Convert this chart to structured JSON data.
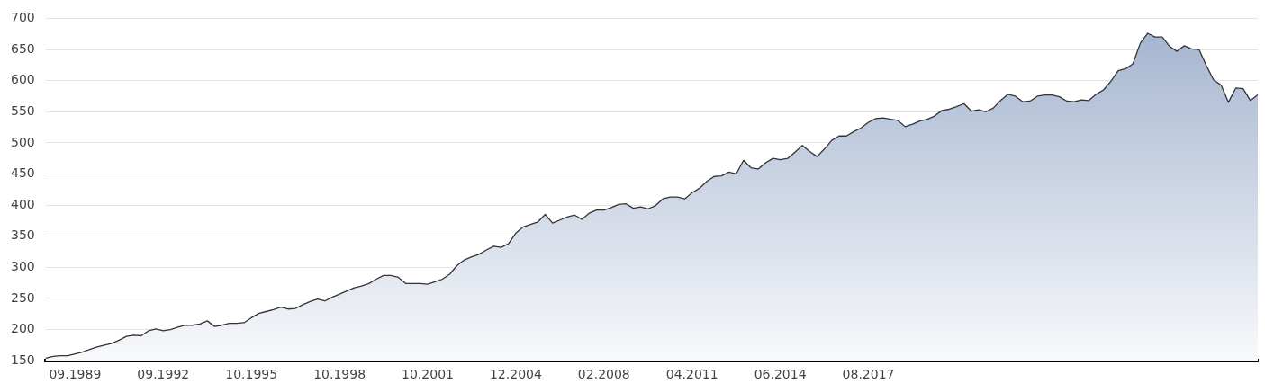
{
  "chart_data": {
    "type": "area",
    "categories": [
      null,
      null,
      null,
      null,
      "09.1989",
      null,
      null,
      null,
      null,
      null,
      null,
      null,
      null,
      null,
      null,
      null,
      "09.1992",
      null,
      null,
      null,
      null,
      null,
      null,
      null,
      null,
      null,
      null,
      null,
      "10.1995",
      null,
      null,
      null,
      null,
      null,
      null,
      null,
      null,
      null,
      null,
      null,
      "10.1998",
      null,
      null,
      null,
      null,
      null,
      null,
      null,
      null,
      null,
      null,
      null,
      "10.2001",
      null,
      null,
      null,
      null,
      null,
      null,
      null,
      null,
      null,
      null,
      null,
      "12.2004",
      null,
      null,
      null,
      null,
      null,
      null,
      null,
      null,
      null,
      null,
      null,
      "02.2008",
      null,
      null,
      null,
      null,
      null,
      null,
      null,
      null,
      null,
      null,
      null,
      "04.2011",
      null,
      null,
      null,
      null,
      null,
      null,
      null,
      null,
      null,
      null,
      null,
      "06.2014",
      null,
      null,
      null,
      null,
      null,
      null,
      null,
      null,
      null,
      null,
      null,
      "08.2017",
      null,
      null,
      null,
      null,
      null,
      null,
      null,
      null,
      null,
      null,
      null,
      null,
      null,
      null,
      null,
      null,
      null,
      null,
      null,
      null,
      null,
      null,
      null,
      null,
      null,
      null,
      null,
      null,
      null,
      null,
      null,
      null,
      null,
      null,
      null,
      null,
      null,
      null,
      null,
      null,
      null,
      null,
      null,
      null,
      null,
      null,
      null,
      null,
      null,
      null,
      null,
      null,
      null
    ],
    "series": [
      {
        "color": "#333333",
        "values": [
          154,
          157,
          158,
          158,
          161,
          164,
          168,
          172,
          175,
          178,
          183,
          189,
          191,
          190,
          198,
          201,
          198,
          200,
          204,
          207,
          207,
          209,
          214,
          205,
          207,
          210,
          210,
          211,
          219,
          226,
          229,
          232,
          236,
          233,
          234,
          240,
          245,
          249,
          246,
          252,
          257,
          262,
          267,
          270,
          274,
          281,
          287,
          287,
          284,
          274,
          274,
          274,
          273,
          277,
          281,
          289,
          303,
          312,
          317,
          321,
          328,
          334,
          332,
          338,
          355,
          365,
          369,
          373,
          385,
          371,
          376,
          381,
          384,
          377,
          387,
          392,
          392,
          396,
          401,
          402,
          395,
          397,
          394,
          399,
          410,
          413,
          413,
          410,
          420,
          427,
          438,
          446,
          447,
          453,
          450,
          472,
          460,
          458,
          468,
          475,
          473,
          475,
          485,
          496,
          486,
          478,
          490,
          504,
          511,
          511,
          518,
          524,
          533,
          539,
          540,
          538,
          536,
          526,
          530,
          535,
          538,
          543,
          552,
          554,
          558,
          563,
          551,
          553,
          550,
          556,
          568,
          578,
          575,
          566,
          567,
          575,
          577,
          577,
          574,
          567,
          566,
          569,
          568,
          578,
          585,
          599,
          616,
          619,
          627,
          660,
          676,
          670,
          670,
          655,
          647,
          656,
          651,
          650,
          624,
          601,
          593,
          565,
          588,
          587,
          568,
          577
        ]
      }
    ],
    "ylim": [
      150,
      700
    ],
    "yticks": [
      150,
      200,
      250,
      300,
      350,
      400,
      450,
      500,
      550,
      600,
      650,
      700
    ],
    "grid": "y"
  }
}
